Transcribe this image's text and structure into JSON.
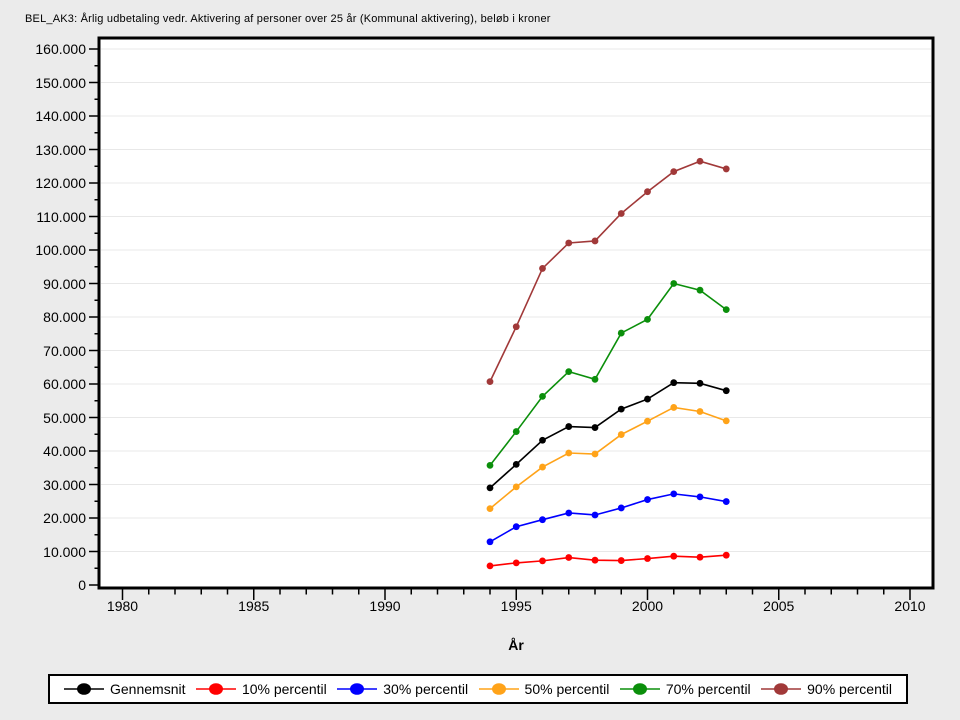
{
  "chart_data": {
    "type": "line",
    "title": "BEL_AK3: Årlig udbetaling vedr. Aktivering af personer over 25 år (Kommunal aktivering), beløb i kroner",
    "xlabel": "År",
    "ylabel": "",
    "x": [
      1994,
      1995,
      1996,
      1997,
      1998,
      1999,
      2000,
      2001,
      2002,
      2003
    ],
    "series": [
      {
        "name": "Gennemsnit",
        "color": "#000000",
        "values": [
          29000,
          36000,
          43200,
          47300,
          47000,
          52500,
          55500,
          60400,
          60200,
          58000
        ]
      },
      {
        "name": "10% percentil",
        "color": "#ff0000",
        "values": [
          5700,
          6600,
          7200,
          8200,
          7400,
          7300,
          7900,
          8600,
          8300,
          8900
        ]
      },
      {
        "name": "30% percentil",
        "color": "#0000ff",
        "values": [
          12900,
          17400,
          19500,
          21500,
          20900,
          23000,
          25500,
          27200,
          26300,
          24900
        ]
      },
      {
        "name": "50% percentil",
        "color": "#ffa319",
        "values": [
          22800,
          29300,
          35200,
          39400,
          39100,
          44900,
          48900,
          53000,
          51800,
          49000
        ]
      },
      {
        "name": "70% percentil",
        "color": "#0b8f0b",
        "values": [
          35700,
          45800,
          56300,
          63700,
          61400,
          75200,
          79300,
          90000,
          88000,
          82200
        ]
      },
      {
        "name": "90% percentil",
        "color": "#a13939",
        "values": [
          60700,
          77100,
          94500,
          102100,
          102700,
          110900,
          117400,
          123400,
          126500,
          124200
        ]
      }
    ],
    "x_axis": {
      "range": [
        1979,
        2011
      ],
      "major_ticks": [
        1980,
        1985,
        1990,
        1995,
        2000,
        2005,
        2010
      ],
      "tick_labels": [
        "1980",
        "1985",
        "1990",
        "1995",
        "2000",
        "2005",
        "2010"
      ],
      "minor_step": 1
    },
    "y_axis": {
      "range": [
        0,
        160000
      ],
      "major_step": 10000,
      "minor_step": 5000,
      "tick_labels": [
        "0",
        "10.000",
        "20.000",
        "30.000",
        "40.000",
        "50.000",
        "60.000",
        "70.000",
        "80.000",
        "90.000",
        "100.000",
        "110.000",
        "120.000",
        "130.000",
        "140.000",
        "150.000",
        "160.000"
      ]
    },
    "grid": "horizontal-major",
    "legend_position": "bottom"
  },
  "colors": {
    "page_bg": "#ebebeb",
    "plot_bg": "#ffffff",
    "grid": "#e8e8e8",
    "axis": "#000000"
  }
}
